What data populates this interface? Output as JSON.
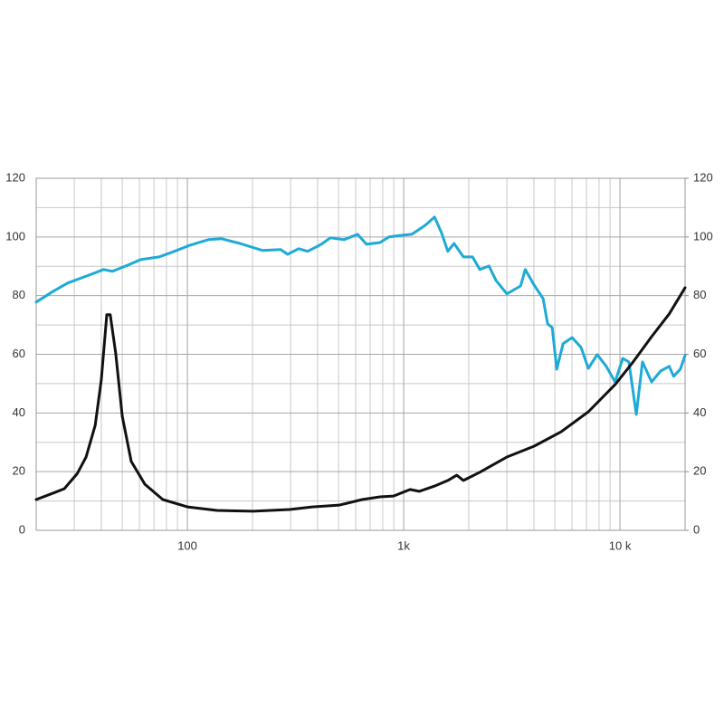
{
  "chart_data": {
    "type": "line",
    "xscale": "log",
    "xlim": [
      20,
      20000
    ],
    "xticks": [
      100,
      {
        "value": 1000,
        "label": "1k"
      },
      {
        "value": 10000,
        "label": "10 k"
      }
    ],
    "ylim": [
      0,
      120
    ],
    "yticks": [
      0,
      20,
      40,
      60,
      80,
      100,
      120
    ],
    "y2lim": [
      0,
      120
    ],
    "y2ticks": [
      0,
      20,
      40,
      60,
      80,
      100,
      120
    ],
    "grid": true,
    "series": [
      {
        "color": "#1eaad6",
        "x": [
          20,
          24,
          28,
          36,
          41,
          45,
          53,
          61,
          74,
          85,
          103,
          125,
          144,
          175,
          222,
          270,
          291,
          327,
          360,
          416,
          458,
          530,
          612,
          673,
          777,
          855,
          990,
          1090,
          1260,
          1390,
          1500,
          1600,
          1710,
          1890,
          2080,
          2250,
          2480,
          2670,
          3000,
          3470,
          3650,
          4010,
          4410,
          4630,
          4860,
          5100,
          5460,
          6010,
          6610,
          7140,
          7850,
          8640,
          9500,
          10300,
          11000,
          11900,
          12700,
          14000,
          15400,
          16900,
          17700,
          19000,
          20000
        ],
        "values": [
          77.8,
          81.5,
          84.3,
          87.3,
          88.9,
          88.3,
          90.4,
          92.3,
          93.2,
          94.8,
          97.2,
          99.1,
          99.4,
          97.8,
          95.4,
          95.7,
          94.1,
          96,
          95.1,
          97.5,
          99.7,
          99.1,
          100.9,
          97.5,
          98.1,
          100,
          100.6,
          100.9,
          104,
          106.8,
          101.2,
          95.1,
          97.8,
          93.2,
          93.2,
          88.9,
          90.1,
          85.2,
          80.6,
          83.3,
          88.9,
          83.6,
          79,
          70.4,
          69.1,
          54.9,
          63.6,
          65.7,
          62.3,
          55.2,
          59.9,
          55.9,
          50.6,
          58.6,
          57.4,
          39.5,
          57.4,
          50.6,
          54.3,
          55.9,
          52.5,
          54.9,
          59.6
        ]
      },
      {
        "color": "#111111",
        "axis": "y2",
        "x": [
          20,
          24,
          27,
          31,
          34,
          37.5,
          40,
          42.4,
          44,
          46.6,
          50,
          55,
          63.6,
          77,
          100,
          137,
          202,
          297,
          378,
          505,
          642,
          777,
          898,
          1070,
          1180,
          1390,
          1600,
          1760,
          1890,
          2250,
          3000,
          4010,
          5350,
          7140,
          9500,
          11500,
          14000,
          16900,
          20000
        ],
        "values": [
          10.5,
          12.7,
          14.2,
          19.4,
          25,
          35.8,
          51.2,
          73.5,
          73.5,
          60.5,
          38.9,
          23.5,
          15.7,
          10.5,
          8,
          6.8,
          6.5,
          7.1,
          8,
          8.6,
          10.5,
          11.4,
          11.7,
          13.9,
          13.3,
          15.1,
          17,
          18.8,
          17,
          19.8,
          25,
          28.7,
          33.6,
          40.4,
          49.7,
          57.4,
          66,
          73.8,
          82.7
        ]
      }
    ]
  }
}
